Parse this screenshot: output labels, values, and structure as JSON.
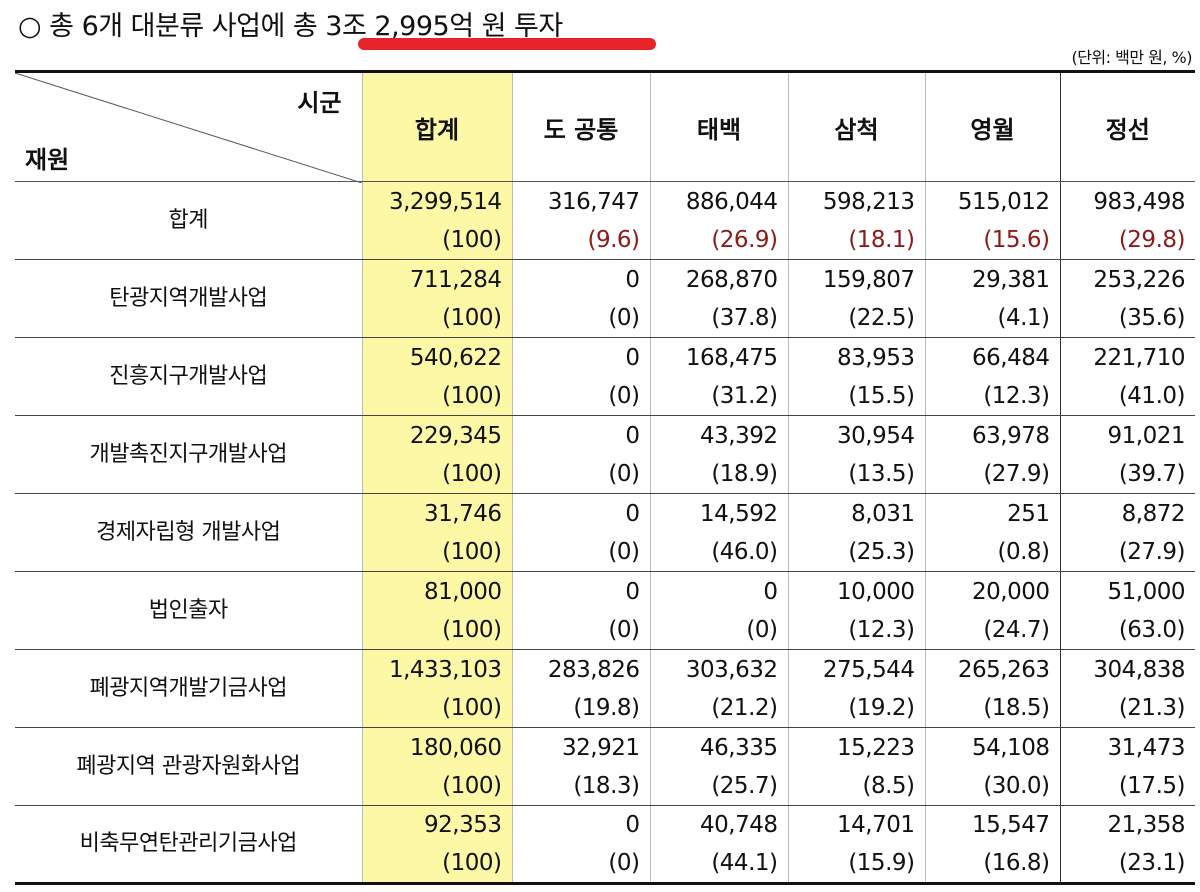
{
  "heading": {
    "text": "○ 총 6개 대분류 사업에 총 3조 2,995억 원 투자",
    "highlight_color": "#e8232a"
  },
  "unit": "(단위: 백만 원, %)",
  "table": {
    "corner_top": "시군",
    "corner_bottom": "재원",
    "columns": [
      "합계",
      "도 공통",
      "태백",
      "삼척",
      "영월",
      "정선"
    ],
    "highlight_column_color": "#fdf8a6",
    "total_pct_color": "#8b1a1a",
    "rows": [
      {
        "label": "합계",
        "values": [
          "3,299,514",
          "316,747",
          "886,044",
          "598,213",
          "515,012",
          "983,498"
        ],
        "pcts": [
          "(100)",
          "(9.6)",
          "(26.9)",
          "(18.1)",
          "(15.6)",
          "(29.8)"
        ]
      },
      {
        "label": "탄광지역개발사업",
        "values": [
          "711,284",
          "0",
          "268,870",
          "159,807",
          "29,381",
          "253,226"
        ],
        "pcts": [
          "(100)",
          "(0)",
          "(37.8)",
          "(22.5)",
          "(4.1)",
          "(35.6)"
        ]
      },
      {
        "label": "진흥지구개발사업",
        "values": [
          "540,622",
          "0",
          "168,475",
          "83,953",
          "66,484",
          "221,710"
        ],
        "pcts": [
          "(100)",
          "(0)",
          "(31.2)",
          "(15.5)",
          "(12.3)",
          "(41.0)"
        ]
      },
      {
        "label": "개발촉진지구개발사업",
        "values": [
          "229,345",
          "0",
          "43,392",
          "30,954",
          "63,978",
          "91,021"
        ],
        "pcts": [
          "(100)",
          "(0)",
          "(18.9)",
          "(13.5)",
          "(27.9)",
          "(39.7)"
        ]
      },
      {
        "label": "경제자립형 개발사업",
        "values": [
          "31,746",
          "0",
          "14,592",
          "8,031",
          "251",
          "8,872"
        ],
        "pcts": [
          "(100)",
          "(0)",
          "(46.0)",
          "(25.3)",
          "(0.8)",
          "(27.9)"
        ]
      },
      {
        "label": "법인출자",
        "values": [
          "81,000",
          "0",
          "0",
          "10,000",
          "20,000",
          "51,000"
        ],
        "pcts": [
          "(100)",
          "(0)",
          "(0)",
          "(12.3)",
          "(24.7)",
          "(63.0)"
        ]
      },
      {
        "label": "폐광지역개발기금사업",
        "values": [
          "1,433,103",
          "283,826",
          "303,632",
          "275,544",
          "265,263",
          "304,838"
        ],
        "pcts": [
          "(100)",
          "(19.8)",
          "(21.2)",
          "(19.2)",
          "(18.5)",
          "(21.3)"
        ]
      },
      {
        "label": "폐광지역 관광자원화사업",
        "values": [
          "180,060",
          "32,921",
          "46,335",
          "15,223",
          "54,108",
          "31,473"
        ],
        "pcts": [
          "(100)",
          "(18.3)",
          "(25.7)",
          "(8.5)",
          "(30.0)",
          "(17.5)"
        ]
      },
      {
        "label": "비축무연탄관리기금사업",
        "values": [
          "92,353",
          "0",
          "40,748",
          "14,701",
          "15,547",
          "21,358"
        ],
        "pcts": [
          "(100)",
          "(0)",
          "(44.1)",
          "(15.9)",
          "(16.8)",
          "(23.1)"
        ]
      }
    ]
  }
}
